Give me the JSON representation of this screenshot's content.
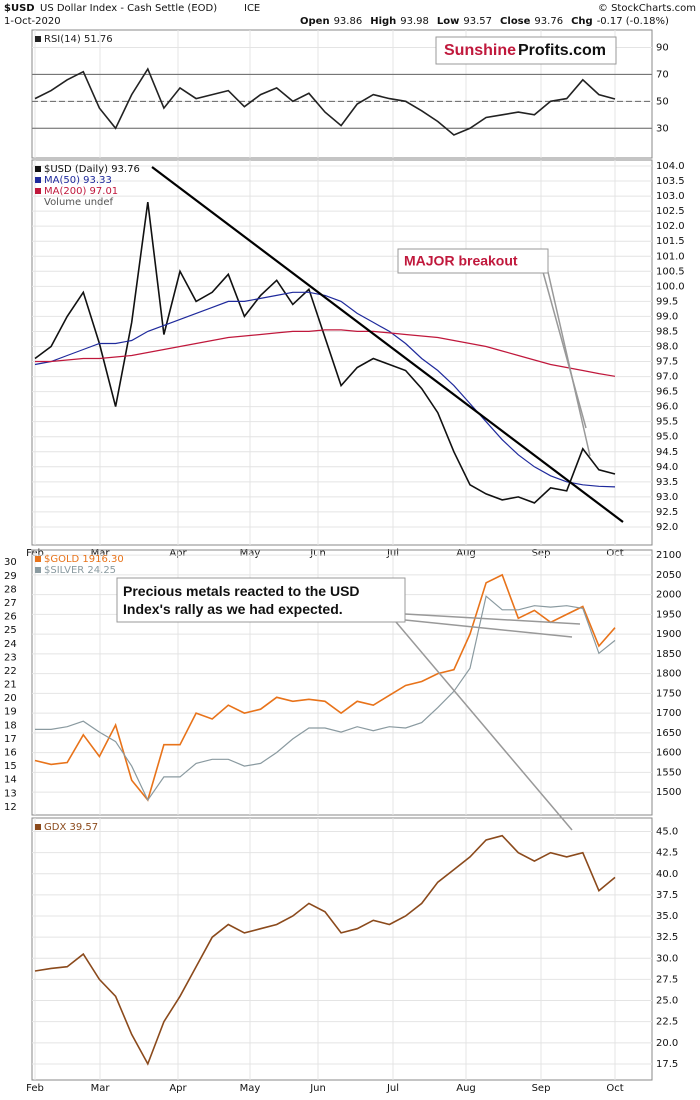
{
  "header": {
    "symbol": "$USD",
    "name": "US Dollar Index - Cash Settle (EOD)",
    "exchange": "ICE",
    "date": "1-Oct-2020",
    "quote": [
      {
        "label": "Open",
        "value": "93.86"
      },
      {
        "label": "High",
        "value": "93.98"
      },
      {
        "label": "Low",
        "value": "93.57"
      },
      {
        "label": "Close",
        "value": "93.76"
      },
      {
        "label": "Chg",
        "value": "-0.17 (-0.18%)"
      }
    ],
    "credit": "© StockCharts.com"
  },
  "logo": [
    "Sunshine",
    "Profits.com"
  ],
  "chart_data": [
    {
      "type": "line",
      "ylim": [
        7.9,
        103
      ],
      "yticks": [
        30,
        50,
        70,
        90
      ],
      "levels": [
        30,
        50,
        70
      ],
      "grid": true,
      "series": [
        {
          "name": "RSI(14) 51.76",
          "color": "#222222",
          "values": [
            52,
            58,
            66,
            72,
            45,
            30,
            55,
            74,
            45,
            60,
            52,
            55,
            58,
            46,
            55,
            60,
            50,
            56,
            42,
            32,
            48,
            55,
            52,
            50,
            43,
            35,
            25,
            30,
            38,
            40,
            42,
            40,
            50,
            52,
            66,
            55,
            51.76
          ]
        }
      ]
    },
    {
      "type": "line",
      "ylim": [
        91.4,
        104.2
      ],
      "grid": true,
      "yticks": [
        {
          "value": 92,
          "label": "92.0"
        },
        92.5,
        {
          "value": 93,
          "label": "93.0"
        },
        93.5,
        {
          "value": 94,
          "label": "94.0"
        },
        94.5,
        {
          "value": 95,
          "label": "95.0"
        },
        95.5,
        {
          "value": 96,
          "label": "96.0"
        },
        96.5,
        {
          "value": 97,
          "label": "97.0"
        },
        97.5,
        {
          "value": 98,
          "label": "98.0"
        },
        98.5,
        {
          "value": 99,
          "label": "99.0"
        },
        99.5,
        {
          "value": 100,
          "label": "100.0"
        },
        100.5,
        {
          "value": 101,
          "label": "101.0"
        },
        101.5,
        {
          "value": 102,
          "label": "102.0"
        },
        102.5,
        {
          "value": 103,
          "label": "103.0"
        },
        103.5,
        {
          "value": 104,
          "label": "104.0"
        }
      ],
      "series": [
        {
          "name": "$USD (Daily) 93.76",
          "color": "#111111",
          "values": [
            97.6,
            98.0,
            99.0,
            99.8,
            98.1,
            96.0,
            98.8,
            102.8,
            98.4,
            100.5,
            99.5,
            99.8,
            100.4,
            99.0,
            99.7,
            100.2,
            99.4,
            99.9,
            98.3,
            96.7,
            97.3,
            97.6,
            97.4,
            97.2,
            96.6,
            95.8,
            94.5,
            93.4,
            93.1,
            92.9,
            93.0,
            92.8,
            93.3,
            93.2,
            94.6,
            93.9,
            93.76
          ]
        },
        {
          "name": "MA(50) 93.33",
          "color": "#1f2a9c",
          "values": [
            97.4,
            97.5,
            97.7,
            97.9,
            98.1,
            98.1,
            98.2,
            98.5,
            98.7,
            98.9,
            99.1,
            99.3,
            99.5,
            99.5,
            99.6,
            99.7,
            99.8,
            99.8,
            99.7,
            99.5,
            99.1,
            98.8,
            98.5,
            98.1,
            97.6,
            97.2,
            96.7,
            96.1,
            95.5,
            94.9,
            94.4,
            94.0,
            93.7,
            93.5,
            93.4,
            93.35,
            93.33
          ]
        },
        {
          "name": "MA(200) 97.01",
          "color": "#c0183c",
          "values": [
            97.5,
            97.5,
            97.55,
            97.6,
            97.6,
            97.65,
            97.7,
            97.8,
            97.9,
            98.0,
            98.1,
            98.2,
            98.3,
            98.35,
            98.4,
            98.45,
            98.5,
            98.5,
            98.55,
            98.55,
            98.5,
            98.5,
            98.45,
            98.4,
            98.35,
            98.3,
            98.2,
            98.1,
            98.0,
            97.85,
            97.7,
            97.55,
            97.4,
            97.3,
            97.2,
            97.1,
            97.01
          ]
        }
      ],
      "volume_label": "Volume undef",
      "annotation": "MAJOR breakout",
      "months": [
        "Feb",
        "Mar",
        "Apr",
        "May",
        "Jun",
        "Jul",
        "Aug",
        "Sep",
        "Oct"
      ]
    },
    {
      "type": "line",
      "ylim": [
        1442,
        2113
      ],
      "yticks": [
        1500,
        1550,
        1600,
        1650,
        1700,
        1750,
        1800,
        1850,
        1900,
        1950,
        2000,
        2050,
        2100
      ],
      "y2lim": [
        11.4,
        30.9
      ],
      "y2ticks": [
        12,
        13,
        14,
        15,
        16,
        17,
        18,
        19,
        20,
        21,
        22,
        23,
        24,
        25,
        26,
        27,
        28,
        29,
        30
      ],
      "grid": true,
      "series": [
        {
          "name": "$GOLD 1916.30",
          "color": "#e8731a",
          "values": [
            1580,
            1570,
            1575,
            1645,
            1590,
            1670,
            1530,
            1480,
            1620,
            1620,
            1700,
            1685,
            1720,
            1700,
            1710,
            1740,
            1730,
            1735,
            1730,
            1700,
            1730,
            1720,
            1745,
            1770,
            1780,
            1800,
            1810,
            1900,
            2030,
            2050,
            1940,
            1960,
            1930,
            1950,
            1970,
            1870,
            1916.3
          ]
        },
        {
          "name": "$SILVER 24.25",
          "color": "#8a9aa0",
          "axis": "y2",
          "values": [
            17.7,
            17.7,
            17.9,
            18.3,
            17.5,
            16.8,
            15.0,
            12.5,
            14.2,
            14.2,
            15.2,
            15.5,
            15.5,
            15.0,
            15.2,
            16.0,
            17.0,
            17.8,
            17.8,
            17.5,
            17.9,
            17.6,
            17.9,
            17.8,
            18.2,
            19.3,
            20.5,
            22.2,
            27.5,
            26.5,
            26.5,
            26.8,
            26.7,
            26.8,
            26.6,
            23.3,
            24.25
          ]
        }
      ],
      "annotation": "Precious metals reacted to the USD Index's rally as we had expected."
    },
    {
      "type": "line",
      "ylim": [
        15.6,
        46.6
      ],
      "grid": true,
      "yticks": [
        17.5,
        {
          "value": 20,
          "label": "20.0"
        },
        22.5,
        {
          "value": 25,
          "label": "25.0"
        },
        27.5,
        {
          "value": 30,
          "label": "30.0"
        },
        32.5,
        {
          "value": 35,
          "label": "35.0"
        },
        37.5,
        {
          "value": 40,
          "label": "40.0"
        },
        42.5,
        {
          "value": 45,
          "label": "45.0"
        }
      ],
      "series": [
        {
          "name": "GDX 39.57",
          "color": "#8b4a1c",
          "values": [
            28.5,
            28.8,
            29.0,
            30.5,
            27.5,
            25.5,
            21.0,
            17.5,
            22.5,
            25.5,
            29.0,
            32.5,
            34.0,
            33.0,
            33.5,
            34.0,
            35.0,
            36.5,
            35.5,
            33.0,
            33.5,
            34.5,
            34.0,
            35.0,
            36.5,
            39.0,
            40.5,
            42.0,
            44.0,
            44.5,
            42.5,
            41.5,
            42.5,
            42.0,
            42.5,
            38.0,
            39.57
          ]
        }
      ],
      "months": [
        "Feb",
        "Mar",
        "Apr",
        "May",
        "Jun",
        "Jul",
        "Aug",
        "Sep",
        "Oct"
      ]
    }
  ]
}
